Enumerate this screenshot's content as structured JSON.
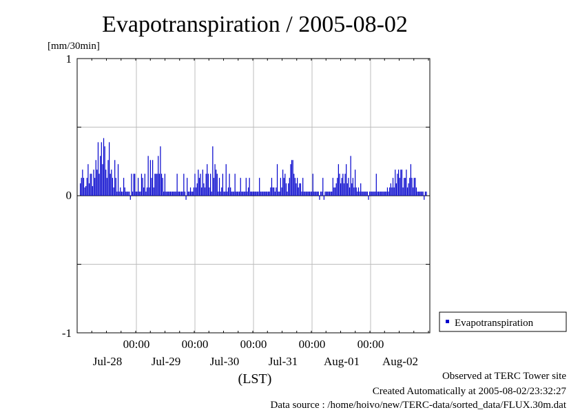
{
  "chart_data": {
    "type": "bar",
    "title": "Evapotranspiration / 2005-08-02",
    "ylabel": "[mm/30min]",
    "ylim": [
      -1,
      1
    ],
    "yticks": [
      "1",
      "0",
      "-1"
    ],
    "time_labels": [
      "00:00",
      "00:00",
      "00:00",
      "00:00",
      "00:00"
    ],
    "date_labels": [
      "Jul-28",
      "Jul-29",
      "Jul-30",
      "Jul-31",
      "Aug-01",
      "Aug-02"
    ],
    "xlabel": "(LST)",
    "grid": true,
    "legend": {
      "position": "right",
      "entries": [
        "Evapotranspiration"
      ]
    },
    "series": [
      {
        "name": "Evapotranspiration",
        "color": "#0000cc",
        "values": [
          0.09,
          0.13,
          0.19,
          0.13,
          0.06,
          0.07,
          0.13,
          0.23,
          0.09,
          0.16,
          0.16,
          0.07,
          0.19,
          0.13,
          0.26,
          0.19,
          0.39,
          0.16,
          0.29,
          0.39,
          0.23,
          0.42,
          0.36,
          0.19,
          0.13,
          0.26,
          0.39,
          0.16,
          0.19,
          0.13,
          0.06,
          0.26,
          0.13,
          0.03,
          0.23,
          0.03,
          0.06,
          0.03,
          0.03,
          0.13,
          0.06,
          0.03,
          0.03,
          0.03,
          0.03,
          -0.03,
          0.16,
          0.03,
          0.16,
          0.16,
          0.03,
          0.03,
          0.13,
          0.03,
          0.03,
          0.16,
          0.13,
          0.06,
          0.16,
          0.03,
          0.06,
          0.29,
          0.06,
          0.26,
          0.13,
          0.26,
          0.06,
          0.16,
          0.16,
          0.16,
          0.29,
          0.16,
          0.36,
          0.16,
          0.13,
          0.03,
          0.16,
          0.03,
          0.03,
          0.03,
          0.03,
          0.03,
          0.03,
          0.03,
          0.03,
          0.03,
          0.03,
          0.16,
          0.03,
          0.03,
          0.03,
          0.03,
          0.03,
          0.16,
          0.03,
          -0.03,
          0.13,
          0.03,
          0.03,
          0.06,
          0.03,
          0.03,
          0.06,
          0.16,
          0.06,
          0.09,
          0.19,
          0.13,
          0.16,
          0.06,
          0.19,
          0.09,
          0.06,
          0.16,
          0.23,
          0.16,
          0.06,
          0.16,
          0.03,
          0.36,
          0.13,
          0.23,
          0.19,
          0.16,
          0.03,
          0.13,
          0.03,
          0.06,
          0.16,
          0.03,
          0.03,
          0.23,
          0.03,
          0.06,
          0.16,
          0.06,
          0.03,
          0.03,
          0.03,
          0.16,
          0.03,
          0.03,
          0.03,
          0.03,
          0.13,
          0.03,
          0.03,
          0.03,
          0.03,
          0.13,
          0.03,
          0.06,
          0.13,
          0.03,
          0.03,
          0.03,
          0.03,
          0.03,
          0.03,
          0.03,
          0.03,
          0.13,
          0.03,
          0.03,
          0.03,
          0.03,
          0.03,
          0.03,
          0.03,
          0.03,
          0.03,
          0.06,
          0.13,
          0.06,
          0.06,
          0.03,
          0.06,
          0.23,
          0.03,
          0.03,
          0.13,
          0.06,
          0.19,
          0.13,
          0.16,
          0.09,
          0.03,
          0.09,
          0.13,
          0.23,
          0.26,
          0.26,
          0.16,
          0.13,
          0.09,
          0.13,
          0.06,
          0.09,
          0.09,
          0.03,
          0.13,
          0.03,
          0.03,
          0.03,
          0.03,
          0.03,
          0.03,
          0.03,
          0.03,
          0.16,
          0.03,
          0.03,
          0.03,
          0.03,
          0.03,
          -0.03,
          0.03,
          0.03,
          0.13,
          -0.03,
          0.03,
          0.03,
          0.03,
          0.03,
          0.03,
          0.03,
          0.03,
          0.13,
          0.06,
          0.06,
          0.09,
          0.13,
          0.23,
          0.16,
          0.09,
          0.13,
          0.16,
          0.09,
          0.16,
          0.23,
          0.09,
          0.13,
          0.06,
          0.29,
          0.09,
          0.13,
          0.06,
          0.19,
          0.06,
          0.03,
          0.06,
          0.03,
          0.09,
          0.03,
          0.03,
          0.03,
          0.03,
          0.03,
          0.03,
          -0.03,
          0.03,
          0.03,
          0.03,
          0.03,
          0.03,
          0.03,
          0.16,
          0.03,
          0.03,
          0.03,
          0.03,
          0.03,
          0.03,
          0.03,
          0.03,
          0.03,
          0.06,
          0.03,
          0.06,
          0.09,
          0.06,
          0.13,
          0.06,
          0.19,
          0.09,
          0.16,
          0.19,
          0.13,
          0.19,
          0.19,
          0.06,
          0.13,
          0.13,
          0.19,
          0.06,
          0.09,
          0.13,
          0.23,
          0.13,
          0.06,
          0.13,
          0.13,
          0.06,
          0.03,
          0.03,
          0.03,
          0.03,
          0.03,
          0.03,
          -0.03,
          0.03,
          0.03
        ]
      }
    ]
  },
  "footer": {
    "line1": "Observed at TERC Tower site",
    "line2": "Created Automatically at 2005-08-02/23:32:27",
    "line3": "Data source : /home/hoivo/new/TERC-data/sorted_data/FLUX.30m.dat"
  }
}
